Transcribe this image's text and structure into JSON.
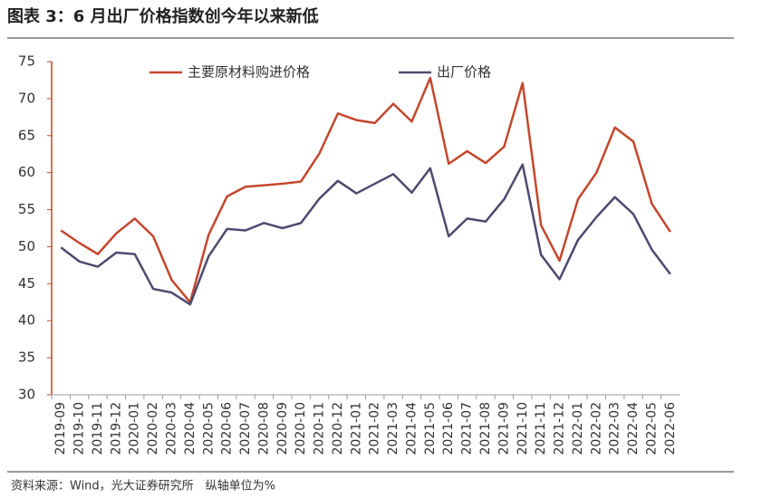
{
  "chart_data": {
    "type": "line",
    "title": "图表 3：6 月出厂价格指数创今年以来新低",
    "source": "资料来源：Wind，光大证券研究所　纵轴单位为%",
    "categories": [
      "2019-09",
      "2019-10",
      "2019-11",
      "2019-12",
      "2020-01",
      "2020-02",
      "2020-03",
      "2020-04",
      "2020-05",
      "2020-06",
      "2020-07",
      "2020-08",
      "2020-09",
      "2020-10",
      "2020-11",
      "2020-12",
      "2021-01",
      "2021-02",
      "2021-03",
      "2021-04",
      "2021-05",
      "2021-06",
      "2021-07",
      "2021-08",
      "2021-09",
      "2021-10",
      "2021-11",
      "2021-12",
      "2022-01",
      "2022-02",
      "2022-03",
      "2022-04",
      "2022-05",
      "2022-06"
    ],
    "series": [
      {
        "name": "主要原材料购进价格",
        "color": "#c4472c",
        "values": [
          52.2,
          50.5,
          49.0,
          51.8,
          53.8,
          51.4,
          45.5,
          42.5,
          51.6,
          56.8,
          58.1,
          58.3,
          58.5,
          58.8,
          62.6,
          68.0,
          67.1,
          66.7,
          69.3,
          66.9,
          72.8,
          61.2,
          62.9,
          61.3,
          63.5,
          72.1,
          52.9,
          48.1,
          56.4,
          60.0,
          66.1,
          64.2,
          55.8,
          52.0
        ]
      },
      {
        "name": "出厂价格",
        "color": "#4e4a6e",
        "values": [
          49.9,
          48.0,
          47.3,
          49.2,
          49.0,
          44.3,
          43.8,
          42.2,
          48.7,
          52.4,
          52.2,
          53.2,
          52.5,
          53.2,
          56.5,
          58.9,
          57.2,
          58.5,
          59.8,
          57.3,
          60.6,
          51.4,
          53.8,
          53.4,
          56.4,
          61.1,
          48.9,
          45.6,
          50.9,
          54.0,
          56.7,
          54.4,
          49.6,
          46.3
        ]
      }
    ],
    "ylim": [
      30,
      75
    ],
    "yticks": [
      30,
      35,
      40,
      45,
      50,
      55,
      60,
      65,
      70,
      75
    ],
    "legend": "top"
  }
}
